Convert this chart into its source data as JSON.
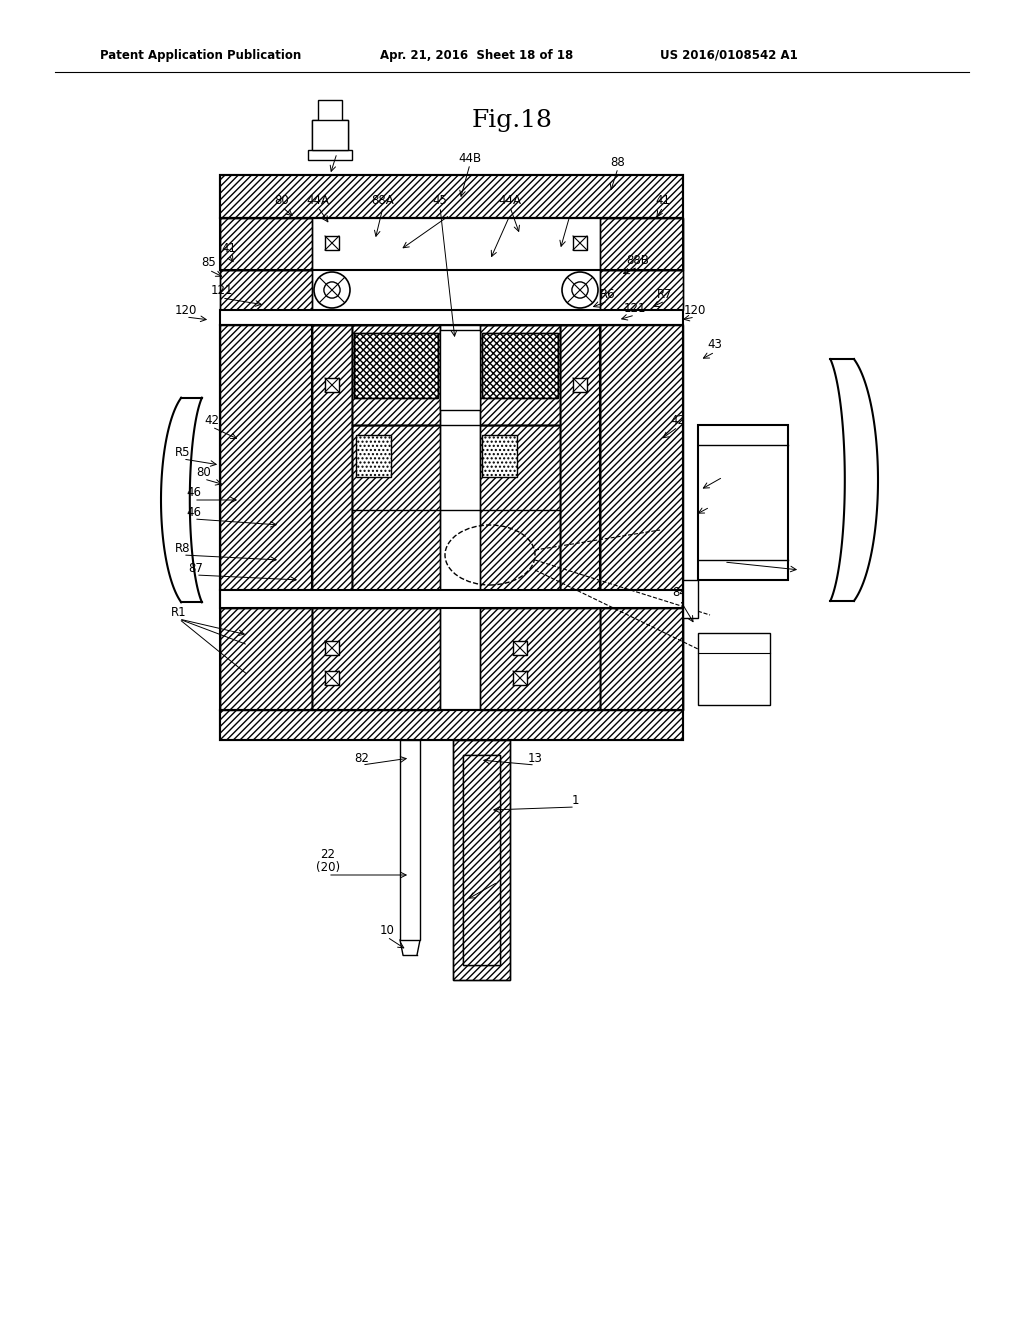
{
  "background_color": "#ffffff",
  "title": "Fig.18",
  "header_left": "Patent Application Publication",
  "header_mid": "Apr. 21, 2016  Sheet 18 of 18",
  "header_right": "US 2016/0108542 A1"
}
